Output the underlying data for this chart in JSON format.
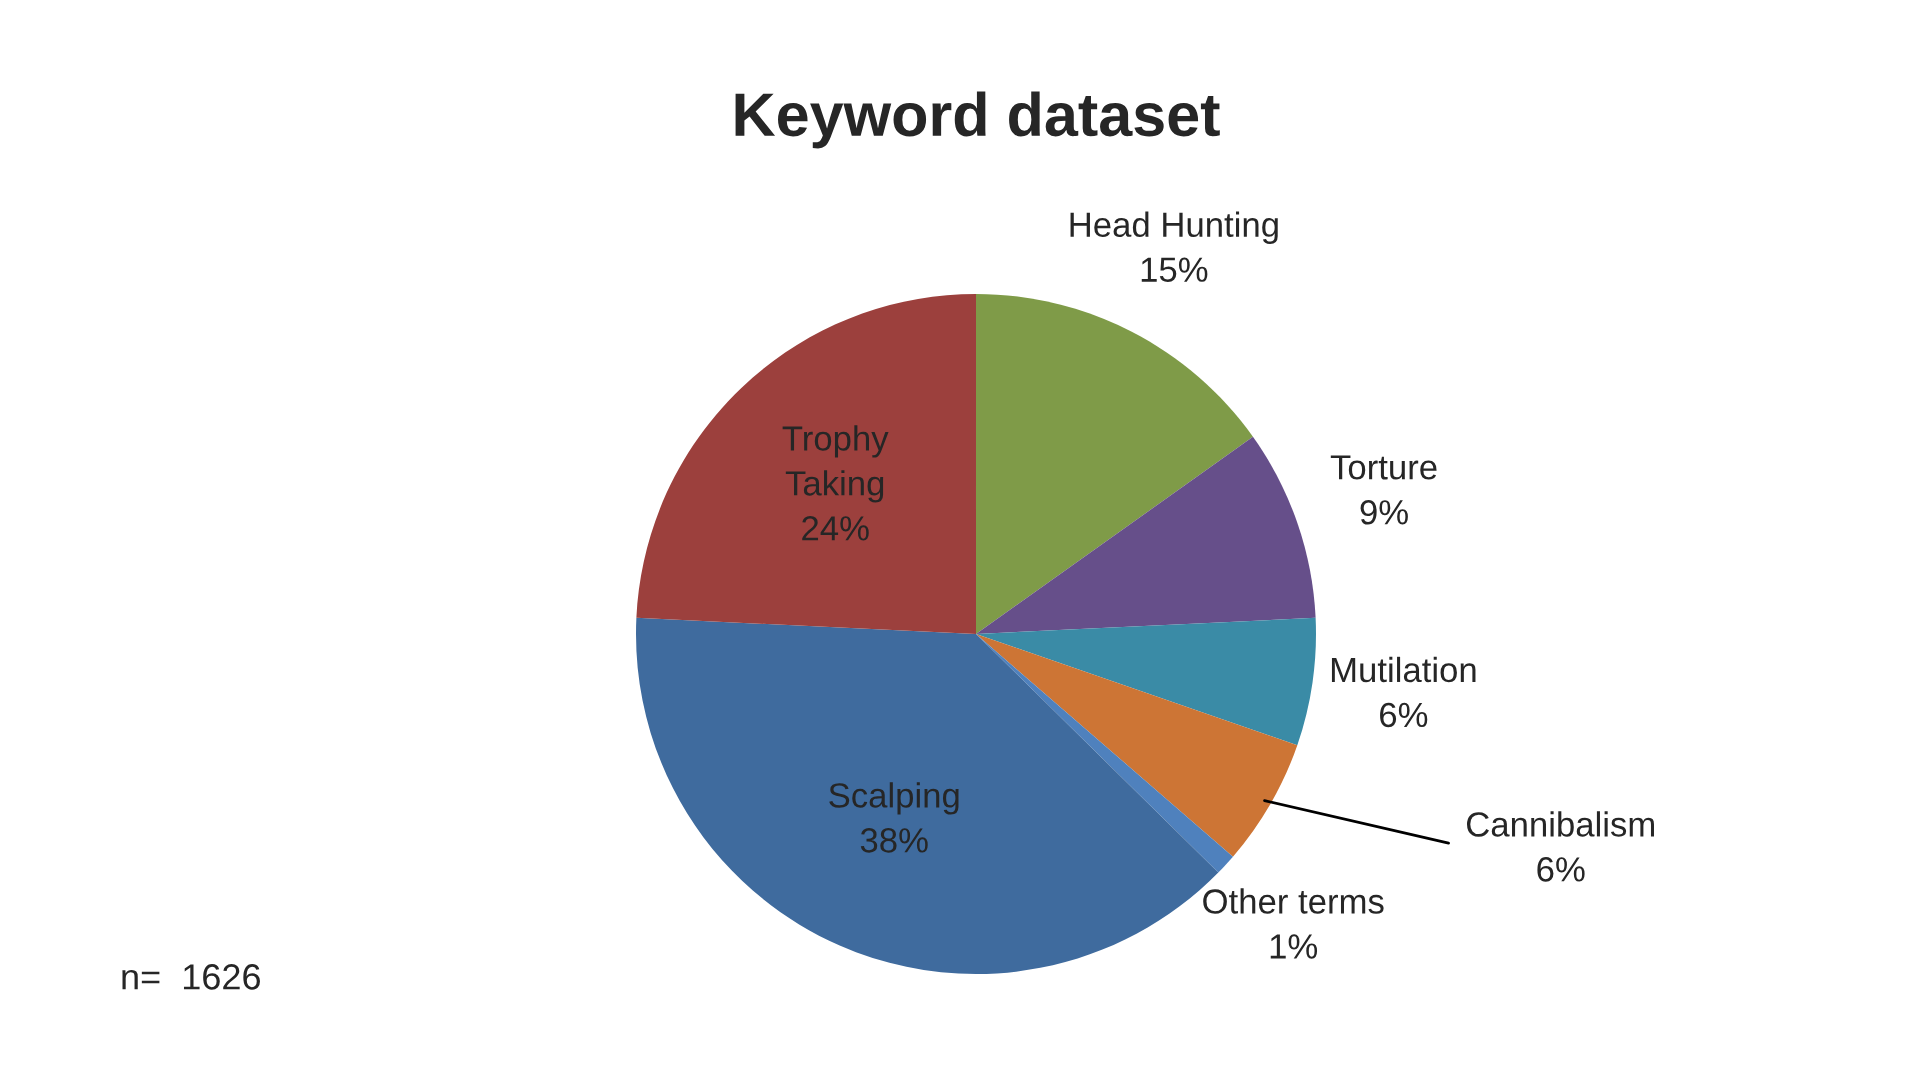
{
  "chart_data": {
    "type": "pie",
    "title": "Keyword dataset",
    "categories": [
      "Head Hunting",
      "Torture",
      "Mutilation",
      "Cannibalism",
      "Other terms",
      "Scalping",
      "Trophy Taking"
    ],
    "values": [
      15,
      9,
      6,
      6,
      1,
      38,
      24
    ],
    "colors": [
      "#7f9b48",
      "#664f8a",
      "#3a8ba6",
      "#cd7535",
      "#4f81bd",
      "#3f6b9e",
      "#9c403d"
    ],
    "value_labels": [
      "15%",
      "9%",
      "6%",
      "6%",
      "1%",
      "38%",
      "24%"
    ],
    "annotations": [
      "n=  1626"
    ],
    "legend": false
  }
}
